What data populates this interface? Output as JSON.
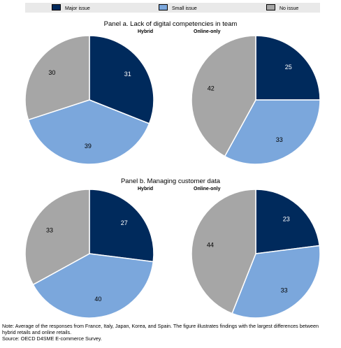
{
  "legend": {
    "items": [
      {
        "label": "Major issue",
        "color": "#002a5c"
      },
      {
        "label": "Small issue",
        "color": "#7ba7dc"
      },
      {
        "label": "No issue",
        "color": "#a6a6a6"
      }
    ]
  },
  "panels": [
    {
      "title": "Panel a. Lack of digital competencies in team"
    },
    {
      "title": "Panel b. Managing customer data"
    }
  ],
  "chart_data": [
    {
      "type": "pie",
      "panel": "Panel a. Lack of digital competencies in team",
      "title": "Hybrid",
      "series": [
        {
          "name": "Major issue",
          "value": 31
        },
        {
          "name": "Small issue",
          "value": 39
        },
        {
          "name": "No issue",
          "value": 30
        }
      ]
    },
    {
      "type": "pie",
      "panel": "Panel a. Lack of digital competencies in team",
      "title": "Online-only",
      "series": [
        {
          "name": "Major issue",
          "value": 25
        },
        {
          "name": "Small issue",
          "value": 33
        },
        {
          "name": "No issue",
          "value": 42
        }
      ]
    },
    {
      "type": "pie",
      "panel": "Panel b. Managing customer data",
      "title": "Hybrid",
      "series": [
        {
          "name": "Major issue",
          "value": 27
        },
        {
          "name": "Small issue",
          "value": 40
        },
        {
          "name": "No issue",
          "value": 33
        }
      ]
    },
    {
      "type": "pie",
      "panel": "Panel b. Managing customer data",
      "title": "Online-only",
      "series": [
        {
          "name": "Major issue",
          "value": 23
        },
        {
          "name": "Small issue",
          "value": 33
        },
        {
          "name": "No issue",
          "value": 44
        }
      ]
    }
  ],
  "note": {
    "line1": "Note: Average of the responses from France, Italy, Japan, Korea, and Spain. The figure illustrates findings with the largest differences between",
    "line2": "hybrid retails and online retails.",
    "source": "Source: OECD D4SME E-commerce Survey."
  }
}
